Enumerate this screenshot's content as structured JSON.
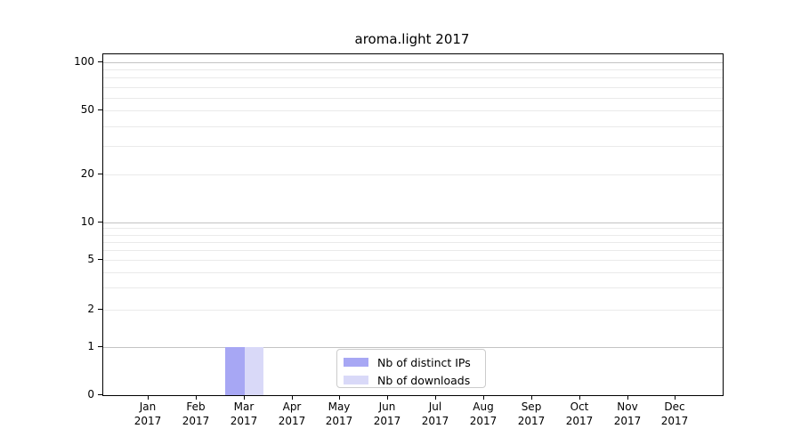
{
  "chart": {
    "title": "aroma.light 2017"
  },
  "chart_data": {
    "type": "bar",
    "title": "aroma.light 2017",
    "categories": [
      "Jan",
      "Feb",
      "Mar",
      "Apr",
      "May",
      "Jun",
      "Jul",
      "Aug",
      "Sep",
      "Oct",
      "Nov",
      "Dec"
    ],
    "category_year": "2017",
    "series": [
      {
        "name": "Nb of distinct IPs",
        "color": "#a7a7f4",
        "values": [
          0,
          0,
          1,
          0,
          0,
          0,
          0,
          0,
          0,
          0,
          0,
          0
        ]
      },
      {
        "name": "Nb of downloads",
        "color": "#d9d9f8",
        "values": [
          0,
          0,
          1,
          0,
          0,
          0,
          0,
          0,
          0,
          0,
          0,
          0
        ]
      }
    ],
    "xlabel": "",
    "ylabel": "",
    "y_ticks": [
      0,
      1,
      2,
      5,
      10,
      20,
      50,
      100
    ],
    "y_minor_gridlines": [
      3,
      4,
      6,
      7,
      8,
      9,
      30,
      40,
      60,
      70,
      80,
      90
    ],
    "y_major_gridline_values": [
      1,
      10,
      100
    ],
    "y_scale": "log (zero pinned at baseline)",
    "ylim": [
      0,
      110
    ],
    "grid": "horizontal major+minor",
    "legend_position": "bottom-center-inside",
    "colors": {
      "axis": "#000000",
      "grid_major": "#c3c3c3",
      "grid_minor": "#eaeaea",
      "legend_border": "#cccccc",
      "background": "#ffffff"
    }
  }
}
